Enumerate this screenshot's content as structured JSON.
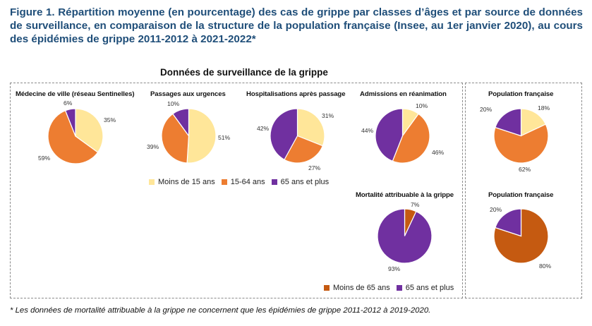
{
  "figure": {
    "title": "Figure 1. Répartition moyenne (en pourcentage) des cas de grippe par classes d’âges et par source de données de surveillance, en comparaison de la structure de la population française (Insee, au 1er janvier 2020), au cours des épidémies de grippe 2011-2012 à 2021-2022*",
    "section_title": "Données de surveillance de la grippe",
    "footnote": "* Les données de mortalité attribuable à la grippe ne concernent que les épidémies de grippe 2011-2012 à 2019-2020."
  },
  "legend_three": [
    {
      "label": "Moins de 15 ans",
      "color": "#ffe699"
    },
    {
      "label": "15-64 ans",
      "color": "#ed7d31"
    },
    {
      "label": "65 ans et plus",
      "color": "#7030a0"
    }
  ],
  "legend_two": [
    {
      "label": "Moins de 65 ans",
      "color": "#c55a11"
    },
    {
      "label": "65 ans et plus",
      "color": "#7030a0"
    }
  ],
  "chart_data": [
    {
      "type": "pie",
      "title": "Médecine de ville (réseau Sentinelles)",
      "slices": [
        {
          "label": "Moins de 15 ans",
          "value": 35,
          "text": "35%",
          "color": "#ffe699"
        },
        {
          "label": "15-64 ans",
          "value": 59,
          "text": "59%",
          "color": "#ed7d31"
        },
        {
          "label": "65 ans et plus",
          "value": 6,
          "text": "6%",
          "color": "#7030a0"
        }
      ]
    },
    {
      "type": "pie",
      "title": "Passages aux urgences",
      "slices": [
        {
          "label": "Moins de 15 ans",
          "value": 51,
          "text": "51%",
          "color": "#ffe699"
        },
        {
          "label": "15-64 ans",
          "value": 39,
          "text": "39%",
          "color": "#ed7d31"
        },
        {
          "label": "65 ans et plus",
          "value": 10,
          "text": "10%",
          "color": "#7030a0"
        }
      ]
    },
    {
      "type": "pie",
      "title": "Hospitalisations après passage",
      "slices": [
        {
          "label": "Moins de 15 ans",
          "value": 31,
          "text": "31%",
          "color": "#ffe699"
        },
        {
          "label": "15-64 ans",
          "value": 27,
          "text": "27%",
          "color": "#ed7d31"
        },
        {
          "label": "65 ans et plus",
          "value": 42,
          "text": "42%",
          "color": "#7030a0"
        }
      ]
    },
    {
      "type": "pie",
      "title": "Admissions en réanimation",
      "slices": [
        {
          "label": "Moins de 15 ans",
          "value": 10,
          "text": "10%",
          "color": "#ffe699"
        },
        {
          "label": "15-64 ans",
          "value": 46,
          "text": "46%",
          "color": "#ed7d31"
        },
        {
          "label": "65 ans et plus",
          "value": 44,
          "text": "44%",
          "color": "#7030a0"
        }
      ]
    },
    {
      "type": "pie",
      "title": "Population française",
      "slices": [
        {
          "label": "Moins de 15 ans",
          "value": 18,
          "text": "18%",
          "color": "#ffe699"
        },
        {
          "label": "15-64 ans",
          "value": 62,
          "text": "62%",
          "color": "#ed7d31"
        },
        {
          "label": "65 ans et plus",
          "value": 20,
          "text": "20%",
          "color": "#7030a0"
        }
      ]
    },
    {
      "type": "pie",
      "title": "Mortalité attribuable à la grippe",
      "slices": [
        {
          "label": "Moins de 65 ans",
          "value": 7,
          "text": "7%",
          "color": "#c55a11"
        },
        {
          "label": "65 ans et plus",
          "value": 93,
          "text": "93%",
          "color": "#7030a0"
        }
      ]
    },
    {
      "type": "pie",
      "title": "Population française",
      "slices": [
        {
          "label": "Moins de 65 ans",
          "value": 80,
          "text": "80%",
          "color": "#c55a11"
        },
        {
          "label": "65 ans et plus",
          "value": 20,
          "text": "20%",
          "color": "#7030a0"
        }
      ]
    }
  ]
}
